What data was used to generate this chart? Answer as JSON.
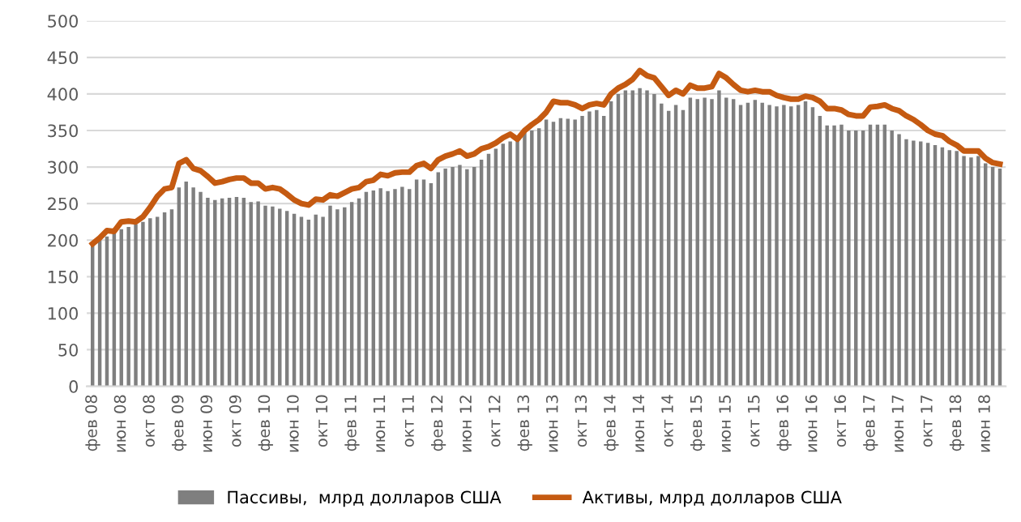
{
  "chart_data": {
    "type": "bar",
    "categories": [
      "фев 08",
      null,
      null,
      null,
      "июн 08",
      null,
      null,
      null,
      "окт 08",
      null,
      null,
      null,
      "фев 09",
      null,
      null,
      null,
      "июн 09",
      null,
      null,
      null,
      "окт 09",
      null,
      null,
      null,
      "фев 10",
      null,
      null,
      null,
      "июн 10",
      null,
      null,
      null,
      "окт 10",
      null,
      null,
      null,
      "фев 11",
      null,
      null,
      null,
      "июн 11",
      null,
      null,
      null,
      "окт 11",
      null,
      null,
      null,
      "фев 12",
      null,
      null,
      null,
      "июн 12",
      null,
      null,
      null,
      "окт 12",
      null,
      null,
      null,
      "фев 13",
      null,
      null,
      null,
      "июн 13",
      null,
      null,
      null,
      "окт 13",
      null,
      null,
      null,
      "фев 14",
      null,
      null,
      null,
      "июн 14",
      null,
      null,
      null,
      "окт 14",
      null,
      null,
      null,
      "фев 15",
      null,
      null,
      null,
      "июн 15",
      null,
      null,
      null,
      "окт 15",
      null,
      null,
      null,
      "фев 16",
      null,
      null,
      null,
      "июн 16",
      null,
      null,
      null,
      "окт 16",
      null,
      null,
      null,
      "фев 17",
      null,
      null,
      null,
      "июн 17",
      null,
      null,
      null,
      "окт 17",
      null,
      null,
      null,
      "фев 18",
      null,
      null,
      null,
      "июн 18",
      null,
      null
    ],
    "series": [
      {
        "name": "Пассивы,  млрд долларов США",
        "color": "#7f7f7f",
        "values": [
          195,
          200,
          205,
          210,
          215,
          218,
          222,
          225,
          230,
          232,
          238,
          242,
          272,
          280,
          272,
          266,
          258,
          255,
          257,
          258,
          259,
          258,
          252,
          253,
          247,
          246,
          243,
          240,
          236,
          232,
          228,
          235,
          232,
          247,
          242,
          245,
          252,
          257,
          266,
          268,
          271,
          267,
          270,
          273,
          270,
          283,
          283,
          278,
          293,
          298,
          300,
          303,
          297,
          300,
          310,
          318,
          325,
          332,
          335,
          338,
          350,
          350,
          353,
          365,
          362,
          367,
          366,
          365,
          370,
          376,
          378,
          370,
          390,
          400,
          405,
          405,
          408,
          405,
          400,
          387,
          377,
          385,
          378,
          395,
          393,
          395,
          393,
          405,
          395,
          393,
          385,
          388,
          392,
          388,
          385,
          383,
          385,
          383,
          385,
          390,
          382,
          370,
          357,
          357,
          358,
          350,
          350,
          350,
          358,
          358,
          358,
          350,
          345,
          338,
          336,
          335,
          333,
          330,
          327,
          323,
          322,
          315,
          313,
          315,
          305,
          300,
          298
        ]
      },
      {
        "name": "Активы, млрд долларов США",
        "type": "line",
        "color": "#c55a11",
        "values": [
          195,
          203,
          213,
          212,
          225,
          226,
          225,
          232,
          245,
          260,
          270,
          272,
          305,
          310,
          298,
          295,
          287,
          278,
          280,
          283,
          285,
          285,
          278,
          278,
          270,
          272,
          270,
          263,
          255,
          250,
          248,
          256,
          255,
          262,
          260,
          265,
          270,
          272,
          280,
          282,
          290,
          288,
          292,
          293,
          293,
          302,
          305,
          298,
          310,
          315,
          318,
          322,
          315,
          318,
          325,
          328,
          333,
          340,
          345,
          338,
          350,
          358,
          365,
          375,
          390,
          388,
          388,
          385,
          380,
          385,
          387,
          385,
          400,
          408,
          413,
          420,
          432,
          425,
          422,
          410,
          398,
          405,
          400,
          412,
          408,
          408,
          410,
          428,
          422,
          413,
          405,
          403,
          405,
          403,
          403,
          398,
          395,
          393,
          393,
          397,
          395,
          390,
          380,
          380,
          378,
          372,
          370,
          370,
          382,
          383,
          385,
          380,
          377,
          370,
          365,
          358,
          350,
          345,
          343,
          335,
          330,
          322,
          322,
          322,
          312,
          306,
          304
        ]
      }
    ],
    "ylim": [
      0,
      500
    ],
    "yticks": [
      0,
      50,
      100,
      150,
      200,
      250,
      300,
      350,
      400,
      450,
      500
    ],
    "grid": "y",
    "legend": "bottom",
    "marker": "none",
    "line_style": "solid"
  }
}
